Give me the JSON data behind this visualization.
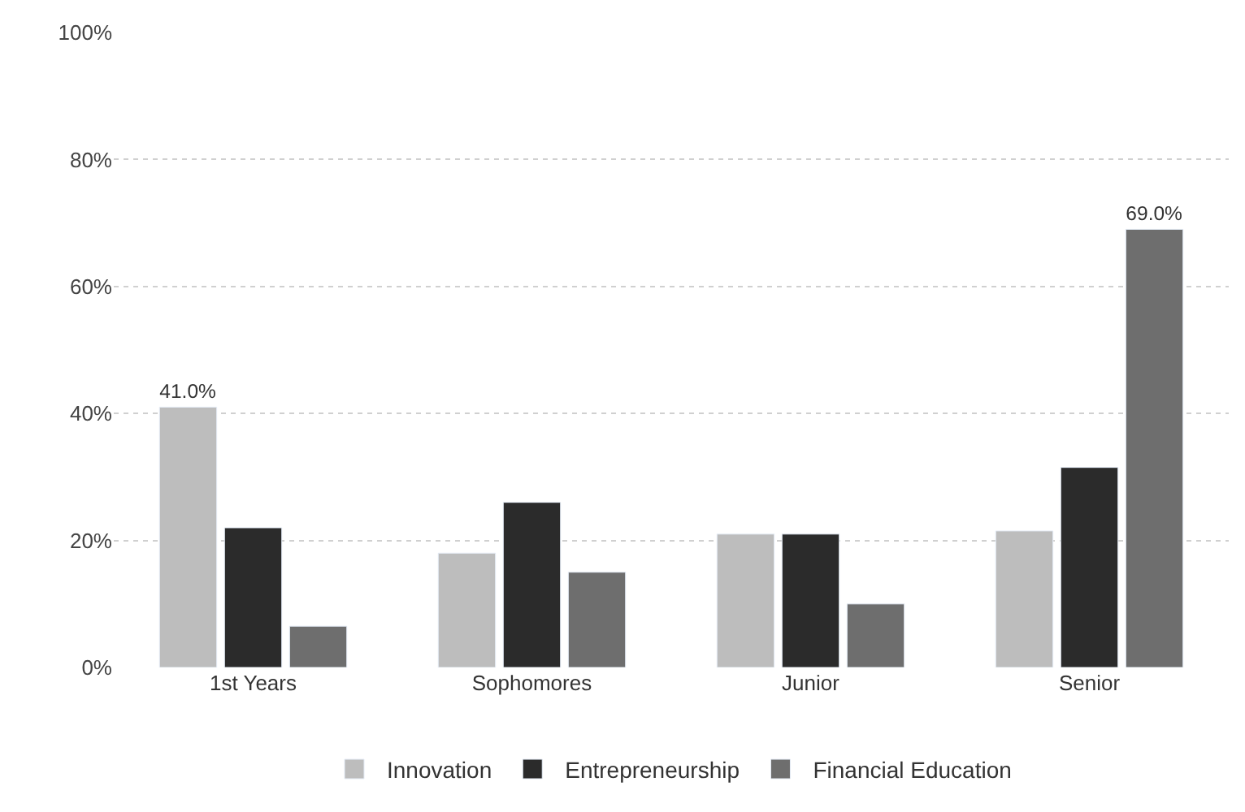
{
  "chart_data": {
    "type": "bar",
    "categories": [
      "1st Years",
      "Sophomores",
      "Junior",
      "Senior"
    ],
    "series": [
      {
        "name": "Innovation",
        "color": "#bdbdbd",
        "values": [
          41.0,
          18,
          21,
          21.5
        ],
        "value_labels": [
          "41.0%",
          null,
          null,
          null
        ]
      },
      {
        "name": "Entrepreneurship",
        "color": "#2b2b2b",
        "values": [
          22,
          26,
          21,
          31.5
        ]
      },
      {
        "name": "Financial Education",
        "color": "#6e6e6e",
        "values": [
          6.5,
          15,
          10,
          69.0
        ],
        "value_labels": [
          null,
          null,
          null,
          "69.0%"
        ]
      }
    ],
    "ylim": [
      0,
      100
    ],
    "yticks": [
      {
        "value": 0,
        "label": "0%"
      },
      {
        "value": 20,
        "label": "20%"
      },
      {
        "value": 40,
        "label": "40%"
      },
      {
        "value": 60,
        "label": "60%"
      },
      {
        "value": 80,
        "label": "80%"
      },
      {
        "value": 100,
        "label": "100%"
      }
    ],
    "grid": "y",
    "legend": "bottom"
  }
}
